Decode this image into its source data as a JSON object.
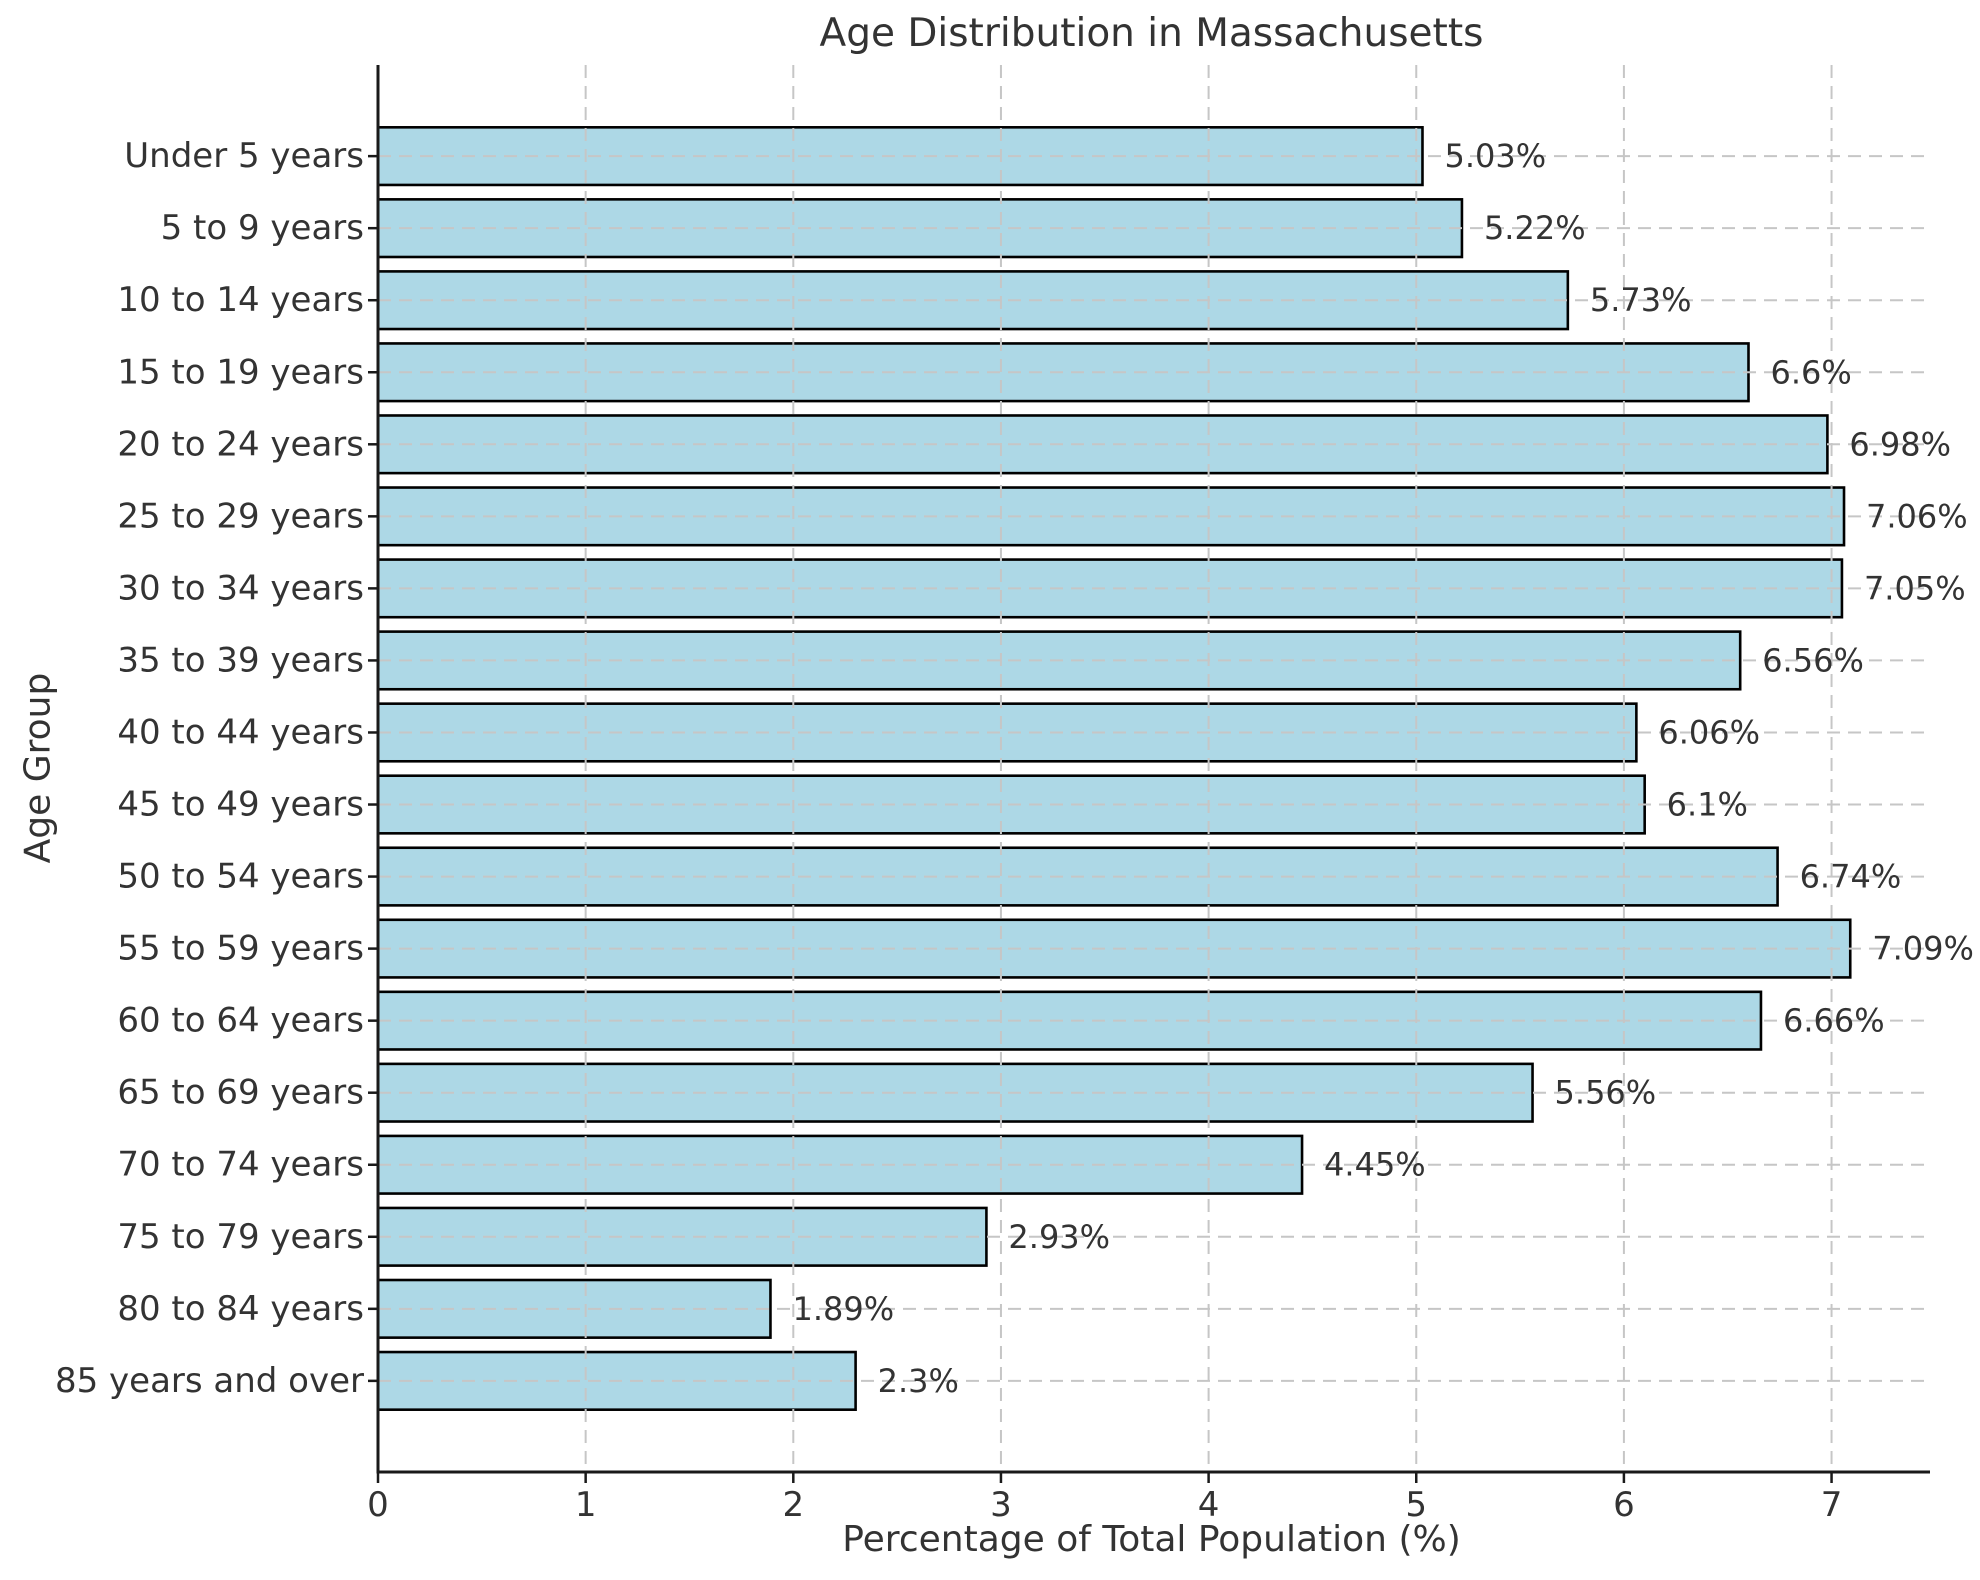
{
  "chart_data": {
    "type": "bar",
    "orientation": "horizontal",
    "title": "Age Distribution in Massachusetts",
    "xlabel": "Percentage of Total Population (%)",
    "ylabel": "Age Group",
    "categories": [
      "Under 5 years",
      "5 to 9 years",
      "10 to 14 years",
      "15 to 19 years",
      "20 to 24 years",
      "25 to 29 years",
      "30 to 34 years",
      "35 to 39 years",
      "40 to 44 years",
      "45 to 49 years",
      "50 to 54 years",
      "55 to 59 years",
      "60 to 64 years",
      "65 to 69 years",
      "70 to 74 years",
      "75 to 79 years",
      "80 to 84 years",
      "85 years and over"
    ],
    "values": [
      5.03,
      5.22,
      5.73,
      6.6,
      6.98,
      7.06,
      7.05,
      6.56,
      6.06,
      6.1,
      6.74,
      7.09,
      6.66,
      5.56,
      4.45,
      2.93,
      1.89,
      2.3
    ],
    "value_labels": [
      "5.03%",
      "5.22%",
      "5.73%",
      "6.6%",
      "6.98%",
      "7.06%",
      "7.05%",
      "6.56%",
      "6.06%",
      "6.1%",
      "6.74%",
      "7.09%",
      "6.66%",
      "5.56%",
      "4.45%",
      "2.93%",
      "1.89%",
      "2.3%"
    ],
    "xticks": [
      "0",
      "1",
      "2",
      "3",
      "4",
      "5",
      "6",
      "7"
    ],
    "xlim": [
      0,
      7.45
    ],
    "grid": "dashed, drawn above bars",
    "legend": "none",
    "colors": {
      "bar_fill": "#ADD8E6",
      "bar_edge": "#000000",
      "grid_line": "#c6c6c6",
      "axis_line": "#1a1a1a",
      "text": "#333333",
      "background": "#ffffff"
    }
  }
}
